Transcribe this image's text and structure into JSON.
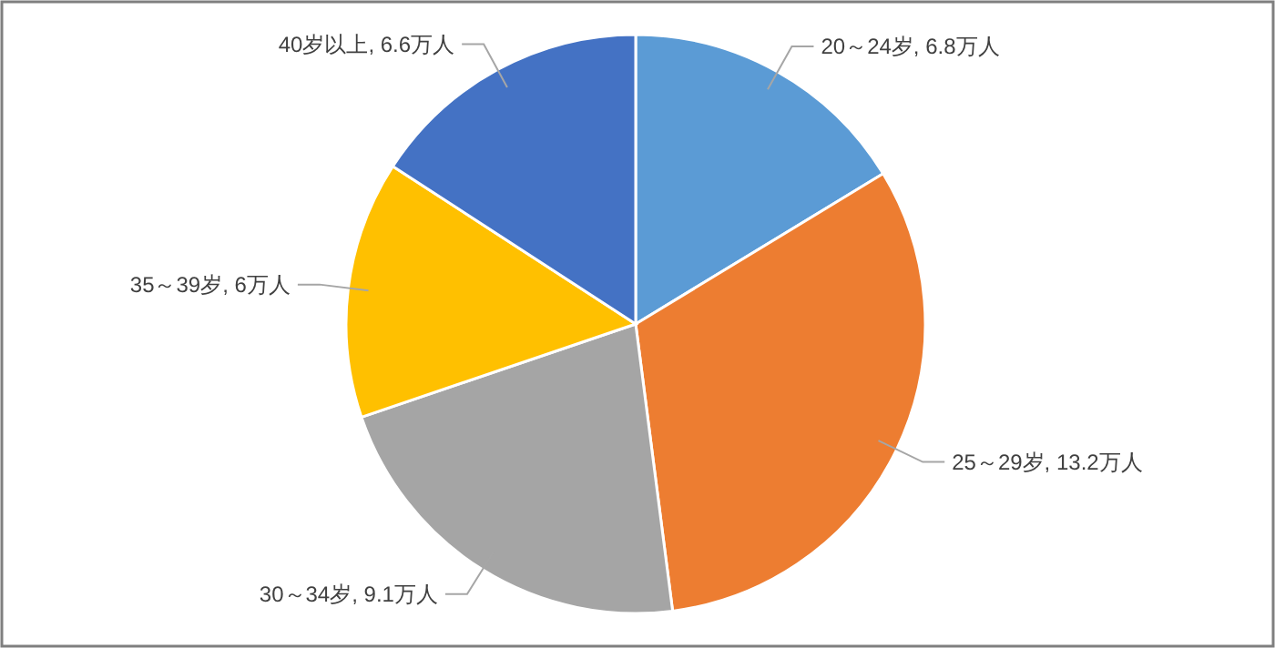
{
  "chart_data": {
    "type": "pie",
    "categories": [
      "20～24岁",
      "25～29岁",
      "30～34岁",
      "35～39岁",
      "40岁以上"
    ],
    "values": [
      6.8,
      13.2,
      9.1,
      6,
      6.6
    ],
    "value_labels": [
      "6.8万人",
      "13.2万人",
      "9.1万人",
      "6万人",
      "6.6万人"
    ],
    "colors": [
      "#5b9bd5",
      "#ed7d31",
      "#a5a5a5",
      "#ffc000",
      "#4472c4"
    ]
  }
}
